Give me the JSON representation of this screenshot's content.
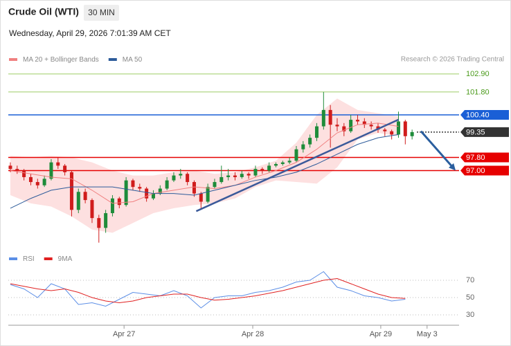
{
  "header": {
    "title": "Crude Oil (WTI)",
    "interval": "30 MIN",
    "timestamp": "Wednesday, April 29, 2026 7:01:39 AM CET"
  },
  "chart_data": [
    {
      "type": "candlestick",
      "source": "Research © 2026 Trading Central",
      "xlim": [
        -0.3,
        65.9
      ],
      "ylim": [
        92.5,
        103.4
      ],
      "up_color": "#1e8c3a",
      "down_color": "#d01c1c",
      "candles": [
        [
          97.3,
          97.5,
          96.9,
          97.1
        ],
        [
          97.1,
          97.3,
          96.8,
          97.0
        ],
        [
          97.0,
          97.1,
          96.4,
          96.6
        ],
        [
          96.6,
          96.8,
          96.1,
          96.3
        ],
        [
          96.3,
          96.5,
          95.9,
          96.1
        ],
        [
          96.1,
          96.7,
          96.0,
          96.5
        ],
        [
          96.5,
          97.7,
          96.4,
          97.5
        ],
        [
          97.5,
          97.8,
          97.1,
          97.3
        ],
        [
          97.3,
          97.4,
          96.7,
          96.9
        ],
        [
          96.9,
          97.0,
          94.2,
          94.6
        ],
        [
          94.6,
          95.9,
          94.4,
          95.7
        ],
        [
          95.7,
          95.9,
          95.0,
          95.2
        ],
        [
          95.2,
          95.3,
          93.8,
          94.1
        ],
        [
          94.1,
          94.3,
          92.6,
          93.5
        ],
        [
          93.5,
          94.6,
          93.2,
          94.4
        ],
        [
          94.4,
          95.5,
          94.2,
          95.3
        ],
        [
          95.3,
          95.4,
          94.7,
          94.9
        ],
        [
          94.9,
          96.6,
          94.8,
          96.4
        ],
        [
          96.4,
          96.5,
          95.8,
          96.0
        ],
        [
          96.0,
          96.2,
          95.7,
          95.9
        ],
        [
          95.9,
          96.0,
          95.1,
          95.3
        ],
        [
          95.3,
          95.8,
          95.2,
          95.6
        ],
        [
          95.6,
          96.1,
          95.5,
          95.9
        ],
        [
          95.9,
          96.6,
          95.8,
          96.4
        ],
        [
          96.4,
          96.9,
          96.3,
          96.7
        ],
        [
          96.7,
          97.1,
          96.5,
          96.8
        ],
        [
          96.8,
          96.9,
          96.1,
          96.3
        ],
        [
          96.3,
          96.4,
          95.4,
          95.6
        ],
        [
          95.6,
          95.7,
          94.7,
          95.1
        ],
        [
          95.1,
          96.2,
          95.0,
          96.0
        ],
        [
          96.0,
          96.5,
          95.9,
          96.3
        ],
        [
          96.3,
          97.3,
          96.2,
          96.6
        ],
        [
          96.6,
          97.1,
          96.4,
          96.7
        ],
        [
          96.7,
          96.9,
          96.4,
          96.6
        ],
        [
          96.6,
          97.0,
          96.5,
          96.8
        ],
        [
          96.8,
          96.9,
          96.5,
          96.7
        ],
        [
          96.7,
          97.3,
          96.6,
          97.1
        ],
        [
          97.1,
          97.2,
          96.8,
          97.0
        ],
        [
          97.0,
          97.5,
          96.9,
          97.3
        ],
        [
          97.3,
          97.5,
          97.2,
          97.4
        ],
        [
          97.4,
          97.6,
          97.3,
          97.5
        ],
        [
          97.5,
          97.8,
          97.4,
          97.6
        ],
        [
          97.6,
          98.5,
          97.5,
          98.3
        ],
        [
          98.3,
          98.8,
          98.1,
          98.6
        ],
        [
          98.6,
          99.2,
          98.4,
          99.0
        ],
        [
          99.0,
          99.9,
          98.8,
          99.7
        ],
        [
          99.7,
          101.8,
          99.5,
          100.7
        ],
        [
          100.7,
          101.0,
          98.4,
          99.8
        ],
        [
          99.8,
          100.2,
          99.4,
          99.7
        ],
        [
          99.7,
          99.9,
          99.1,
          99.4
        ],
        [
          99.4,
          100.4,
          99.3,
          100.1
        ],
        [
          100.1,
          100.4,
          99.8,
          100.0
        ],
        [
          100.0,
          100.2,
          99.6,
          99.8
        ],
        [
          99.8,
          100.0,
          99.5,
          99.7
        ],
        [
          99.7,
          99.9,
          99.3,
          99.5
        ],
        [
          99.5,
          99.6,
          99.1,
          99.4
        ],
        [
          99.4,
          99.5,
          98.9,
          99.2
        ],
        [
          99.2,
          100.6,
          99.0,
          100.0
        ],
        [
          100.0,
          100.1,
          98.6,
          99.1
        ],
        [
          99.1,
          99.5,
          98.9,
          99.35
        ]
      ],
      "series": [
        {
          "name": "MA 20 + Bollinger Bands",
          "color": "#f08080",
          "band_color": "#fde0e0",
          "x": [
            0,
            3,
            6,
            9,
            12,
            15,
            18,
            21,
            24,
            27,
            30,
            33,
            36,
            39,
            42,
            45,
            48,
            51,
            54,
            57
          ],
          "values": [
            97.0,
            96.8,
            96.6,
            96.5,
            95.8,
            95.0,
            95.1,
            95.6,
            95.8,
            96.0,
            95.9,
            96.1,
            96.6,
            97.0,
            97.5,
            98.3,
            99.3,
            99.8,
            99.9,
            99.7
          ],
          "upper": [
            97.9,
            97.8,
            97.9,
            97.8,
            97.5,
            97.0,
            96.7,
            96.7,
            96.9,
            97.0,
            96.8,
            96.9,
            97.2,
            97.6,
            98.7,
            100.4,
            101.4,
            100.7,
            100.5,
            100.3
          ],
          "lower": [
            95.5,
            95.0,
            94.8,
            94.2,
            93.4,
            93.2,
            93.8,
            94.4,
            94.7,
            94.9,
            95.0,
            95.3,
            96.0,
            96.4,
            96.3,
            96.2,
            97.2,
            98.9,
            99.3,
            99.1
          ]
        },
        {
          "name": "MA 50",
          "color": "#2d5b9a",
          "x": [
            0,
            3,
            6,
            9,
            12,
            15,
            18,
            21,
            24,
            27,
            30,
            33,
            36,
            39,
            42,
            45,
            48,
            51,
            54,
            57
          ],
          "values": [
            94.7,
            95.3,
            95.8,
            96.0,
            96.0,
            96.0,
            95.8,
            95.6,
            95.6,
            95.5,
            95.8,
            96.1,
            96.4,
            96.6,
            96.9,
            97.4,
            98.0,
            98.6,
            99.0,
            99.2
          ]
        }
      ],
      "levels": [
        {
          "value": 102.9,
          "label": "102.90",
          "color": "#9ccc65",
          "label_color": "#4a9a1a",
          "label_box": false
        },
        {
          "value": 101.8,
          "label": "101.80",
          "color": "#9ccc65",
          "label_color": "#4a9a1a",
          "label_box": false
        },
        {
          "value": 100.4,
          "label": "100.40",
          "color": "#1a5fd6",
          "label_color": "#ffffff",
          "label_box": true
        },
        {
          "value": 99.35,
          "color": "#333333",
          "label_color": "#ffffff",
          "label_box": true,
          "dotted": true
        },
        {
          "value": 97.8,
          "label": "97.80",
          "color": "#e60000",
          "label_color": "#ffffff",
          "label_box": true
        },
        {
          "value": 97.0,
          "label": "97.00",
          "color": "#e60000",
          "label_color": "#ffffff",
          "label_box": true
        }
      ],
      "trend_line": {
        "x": [
          27.3,
          57
        ],
        "y": [
          94.52,
          100.11
        ],
        "color": "#3b5a9a"
      },
      "forecast": {
        "x": [
          60.3,
          65.4
        ],
        "y": [
          99.4,
          97.0
        ],
        "color": "#2a5e9e"
      }
    },
    {
      "type": "line",
      "xlim": [
        -0.3,
        65.9
      ],
      "ylim": [
        24,
        86
      ],
      "yticks": [
        30,
        50,
        70
      ],
      "grid": true,
      "xticks": [
        {
          "value": 16.7,
          "label": "Apr 27"
        },
        {
          "value": 35.6,
          "label": "Apr 28"
        },
        {
          "value": 54.4,
          "label": "Apr 29"
        },
        {
          "value": 61.2,
          "label": "May 3"
        }
      ],
      "series": [
        {
          "name": "RSI",
          "color": "#5b8ee6",
          "x": [
            0,
            2,
            4,
            6,
            8,
            10,
            12,
            14,
            16,
            18,
            20,
            22,
            24,
            26,
            28,
            30,
            32,
            34,
            36,
            38,
            40,
            42,
            44,
            46,
            48,
            50,
            52,
            54,
            56,
            58
          ],
          "values": [
            65,
            60,
            50,
            66,
            60,
            42,
            44,
            40,
            48,
            56,
            54,
            52,
            58,
            52,
            38,
            50,
            52,
            52,
            56,
            58,
            62,
            68,
            70,
            80,
            62,
            58,
            52,
            50,
            46,
            48
          ]
        },
        {
          "name": "9MA",
          "color": "#e02020",
          "x": [
            0,
            2,
            4,
            6,
            8,
            10,
            12,
            14,
            16,
            18,
            20,
            22,
            24,
            26,
            28,
            30,
            32,
            34,
            36,
            38,
            40,
            42,
            44,
            46,
            48,
            50,
            52,
            54,
            56,
            58
          ],
          "values": [
            66,
            63,
            60,
            58,
            60,
            56,
            50,
            46,
            44,
            46,
            50,
            52,
            54,
            54,
            50,
            47,
            48,
            50,
            52,
            55,
            58,
            62,
            66,
            70,
            72,
            66,
            60,
            54,
            50,
            49
          ]
        }
      ]
    }
  ]
}
